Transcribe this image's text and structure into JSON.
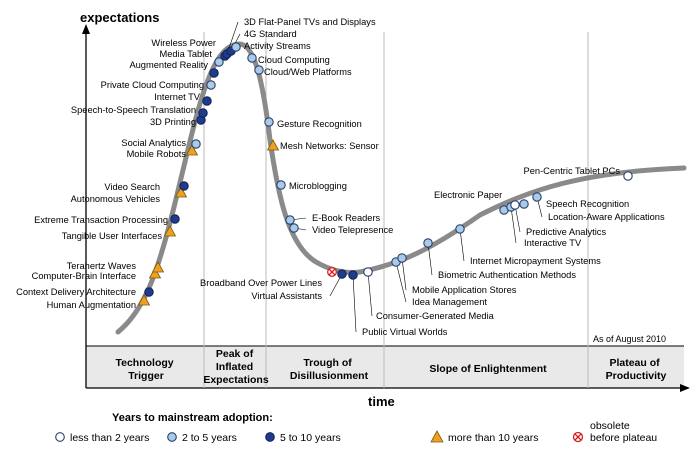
{
  "axes": {
    "y_title": "expectations",
    "x_title": "time"
  },
  "as_of": "As of August 2010",
  "phases": [
    {
      "lines": [
        "Technology",
        "Trigger"
      ]
    },
    {
      "lines": [
        "Peak of",
        "Inflated",
        "Expectations"
      ]
    },
    {
      "lines": [
        "Trough of",
        "Disillusionment"
      ]
    },
    {
      "lines": [
        "Slope of Enlightenment"
      ]
    },
    {
      "lines": [
        "Plateau of",
        "Productivity"
      ]
    }
  ],
  "legend": {
    "title": "Years to mainstream adoption:",
    "items": [
      {
        "label": "less than 2 years",
        "marker": "white"
      },
      {
        "label": "2 to 5 years",
        "marker": "light-blue"
      },
      {
        "label": "5 to 10 years",
        "marker": "dark-blue"
      },
      {
        "label": "more than 10 years",
        "marker": "orange-triangle"
      },
      {
        "label_lines": [
          "obsolete",
          "before plateau"
        ],
        "marker": "obsolete"
      }
    ]
  },
  "colors": {
    "curve": "#8a8a8a",
    "white": "#ffffff",
    "light_blue": "#a9cbe8",
    "dark_blue": "#1f3c8c",
    "orange": "#f0a020",
    "obsolete": "#d62020",
    "marker_stroke": "#2a3f6b",
    "phase_band": "#e9e9e9"
  },
  "technologies": [
    {
      "name": "Human Augmentation",
      "adoption": "more than 10 years",
      "phase": "Technology Trigger"
    },
    {
      "name": "Context Delivery Architecture",
      "adoption": "5 to 10 years",
      "phase": "Technology Trigger"
    },
    {
      "name": "Computer-Brain Interface",
      "adoption": "more than 10 years",
      "phase": "Technology Trigger"
    },
    {
      "name": "Terahertz Waves",
      "adoption": "more than 10 years",
      "phase": "Technology Trigger"
    },
    {
      "name": "Tangible User Interfaces",
      "adoption": "more than 10 years",
      "phase": "Technology Trigger"
    },
    {
      "name": "Extreme Transaction Processing",
      "adoption": "5 to 10 years",
      "phase": "Technology Trigger"
    },
    {
      "name": "Autonomous Vehicles",
      "adoption": "more than 10 years",
      "phase": "Technology Trigger"
    },
    {
      "name": "Video Search",
      "adoption": "5 to 10 years",
      "phase": "Technology Trigger"
    },
    {
      "name": "Mobile Robots",
      "adoption": "more than 10 years",
      "phase": "Technology Trigger"
    },
    {
      "name": "Social Analytics",
      "adoption": "2 to 5 years",
      "phase": "Technology Trigger"
    },
    {
      "name": "3D Printing",
      "adoption": "5 to 10 years",
      "phase": "Technology Trigger"
    },
    {
      "name": "Speech-to-Speech Translation",
      "adoption": "5 to 10 years",
      "phase": "Technology Trigger"
    },
    {
      "name": "Internet TV",
      "adoption": "5 to 10 years",
      "phase": "Technology Trigger"
    },
    {
      "name": "Private Cloud Computing",
      "adoption": "2 to 5 years",
      "phase": "Technology Trigger"
    },
    {
      "name": "Augmented Reality",
      "adoption": "5 to 10 years",
      "phase": "Peak of Inflated Expectations"
    },
    {
      "name": "Media Tablet",
      "adoption": "2 to 5 years",
      "phase": "Peak of Inflated Expectations"
    },
    {
      "name": "Wireless Power",
      "adoption": "5 to 10 years",
      "phase": "Peak of Inflated Expectations"
    },
    {
      "name": "3D Flat-Panel TVs and Displays",
      "adoption": "5 to 10 years",
      "phase": "Peak of Inflated Expectations"
    },
    {
      "name": "4G Standard",
      "adoption": "5 to 10 years",
      "phase": "Peak of Inflated Expectations"
    },
    {
      "name": "Activity Streams",
      "adoption": "2 to 5 years",
      "phase": "Peak of Inflated Expectations"
    },
    {
      "name": "Cloud Computing",
      "adoption": "2 to 5 years",
      "phase": "Peak of Inflated Expectations"
    },
    {
      "name": "Cloud/Web Platforms",
      "adoption": "2 to 5 years",
      "phase": "Peak of Inflated Expectations"
    },
    {
      "name": "Gesture Recognition",
      "adoption": "2 to 5 years",
      "phase": "Trough of Disillusionment"
    },
    {
      "name": "Mesh Networks: Sensor",
      "adoption": "more than 10 years",
      "phase": "Trough of Disillusionment"
    },
    {
      "name": "Microblogging",
      "adoption": "2 to 5 years",
      "phase": "Trough of Disillusionment"
    },
    {
      "name": "E-Book Readers",
      "adoption": "2 to 5 years",
      "phase": "Trough of Disillusionment"
    },
    {
      "name": "Video Telepresence",
      "adoption": "2 to 5 years",
      "phase": "Trough of Disillusionment"
    },
    {
      "name": "Broadband Over Power Lines",
      "adoption": "obsolete before plateau",
      "phase": "Trough of Disillusionment"
    },
    {
      "name": "Virtual Assistants",
      "adoption": "5 to 10 years",
      "phase": "Trough of Disillusionment"
    },
    {
      "name": "Public Virtual Worlds",
      "adoption": "5 to 10 years",
      "phase": "Trough of Disillusionment"
    },
    {
      "name": "Consumer-Generated Media",
      "adoption": "less than 2 years",
      "phase": "Trough of Disillusionment"
    },
    {
      "name": "Idea Management",
      "adoption": "2 to 5 years",
      "phase": "Slope of Enlightenment"
    },
    {
      "name": "Mobile Application Stores",
      "adoption": "2 to 5 years",
      "phase": "Slope of Enlightenment"
    },
    {
      "name": "Biometric Authentication Methods",
      "adoption": "2 to 5 years",
      "phase": "Slope of Enlightenment"
    },
    {
      "name": "Internet Micropayment Systems",
      "adoption": "2 to 5 years",
      "phase": "Slope of Enlightenment"
    },
    {
      "name": "Electronic Paper",
      "adoption": "2 to 5 years",
      "phase": "Slope of Enlightenment"
    },
    {
      "name": "Interactive TV",
      "adoption": "2 to 5 years",
      "phase": "Slope of Enlightenment"
    },
    {
      "name": "Predictive Analytics",
      "adoption": "less than 2 years",
      "phase": "Slope of Enlightenment"
    },
    {
      "name": "Location-Aware Applications",
      "adoption": "2 to 5 years",
      "phase": "Slope of Enlightenment"
    },
    {
      "name": "Speech Recognition",
      "adoption": "2 to 5 years",
      "phase": "Slope of Enlightenment"
    },
    {
      "name": "Pen-Centric Tablet PCs",
      "adoption": "less than 2 years",
      "phase": "Slope of Enlightenment"
    }
  ]
}
